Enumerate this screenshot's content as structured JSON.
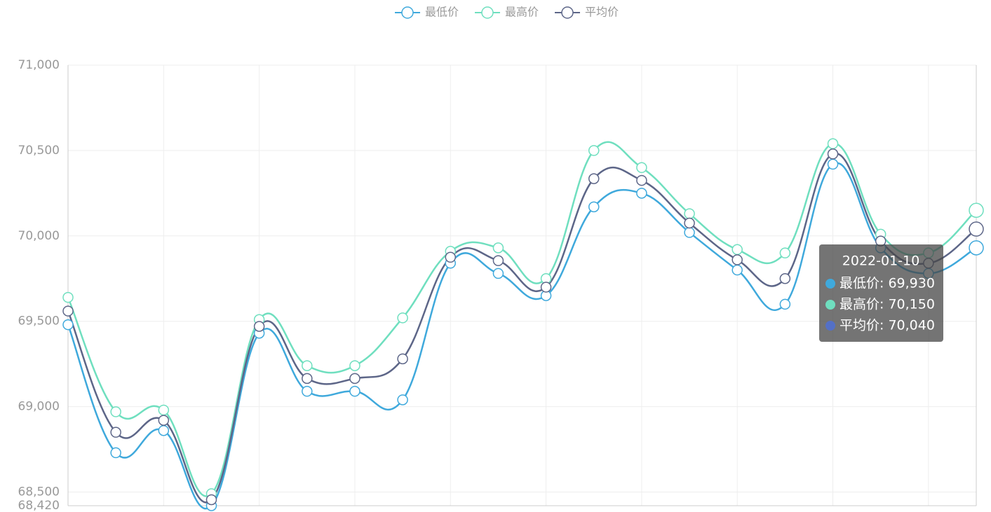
{
  "chart_data": {
    "type": "line",
    "categories": [
      null,
      null,
      null,
      null,
      null,
      null,
      null,
      null,
      null,
      null,
      null,
      null,
      null,
      null,
      null,
      null,
      null,
      null,
      null,
      "2022-01-10"
    ],
    "series": [
      {
        "name": "最低价",
        "color": "#3fa9dc",
        "values": [
          69480,
          68730,
          68860,
          68420,
          69430,
          69090,
          69090,
          69040,
          69840,
          69780,
          69650,
          70170,
          70250,
          70020,
          69800,
          69600,
          70420,
          69930,
          69780,
          69930
        ]
      },
      {
        "name": "最高价",
        "color": "#6fdfbf",
        "values": [
          69640,
          68970,
          68980,
          68490,
          69510,
          69240,
          69240,
          69520,
          69910,
          69930,
          69750,
          70500,
          70400,
          70130,
          69920,
          69900,
          70540,
          70010,
          69900,
          70150
        ]
      },
      {
        "name": "平均价",
        "color": "#5d6688",
        "values": [
          69560,
          68850,
          68920,
          68455,
          69470,
          69165,
          69165,
          69280,
          69875,
          69855,
          69700,
          70335,
          70325,
          70075,
          69860,
          69750,
          70480,
          69970,
          69840,
          70040
        ]
      }
    ],
    "ylim": [
      68420,
      71000
    ],
    "yticks": [
      {
        "value": 68420,
        "label": "68,420"
      },
      {
        "value": 68500,
        "label": "68,500"
      },
      {
        "value": 69000,
        "label": "69,000"
      },
      {
        "value": 69500,
        "label": "69,500"
      },
      {
        "value": 70000,
        "label": "70,000"
      },
      {
        "value": 70500,
        "label": "70,500"
      },
      {
        "value": 71000,
        "label": "71,000"
      }
    ],
    "grid": true,
    "smooth": true,
    "legend": "top",
    "tooltip": {
      "rows": [
        "最低价: 69,930",
        "最高价: 70,150",
        "平均价: 70,040"
      ],
      "dot_colors": [
        "#3fa9dc",
        "#6fdfbf",
        "#5470c6"
      ]
    }
  }
}
